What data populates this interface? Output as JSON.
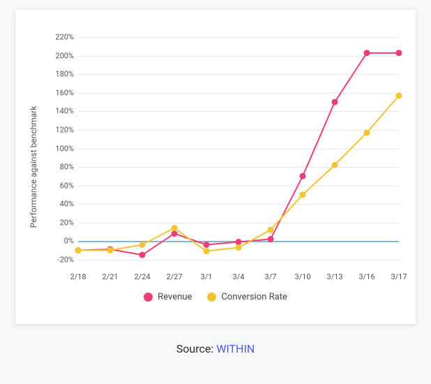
{
  "chart": {
    "type": "line",
    "background_color": "#ffffff",
    "grid_color": "#e7e8ea",
    "zero_line_color": "#80b9d6",
    "ylabel": "Performance against benchmark",
    "label_fontsize": 12,
    "tick_fontsize": 11,
    "tick_color": "#555555",
    "ylim": [
      -30,
      230
    ],
    "ytick_step": 20,
    "ytick_min": -20,
    "ytick_max": 220,
    "line_width": 2,
    "marker_style": "circle",
    "marker_radius": 4.5,
    "x_labels": [
      "2/18",
      "2/21",
      "2/24",
      "2/27",
      "3/1",
      "3/4",
      "3/7",
      "3/10",
      "3/13",
      "3/16",
      "3/17"
    ],
    "series": [
      {
        "name": "Revenue",
        "color": "#ec3e74",
        "values": [
          -10,
          -9,
          -15,
          8,
          -4,
          -1,
          2,
          70,
          150,
          203,
          203
        ]
      },
      {
        "name": "Conversion Rate",
        "color": "#f4c430",
        "values": [
          -10,
          -10,
          -4,
          14,
          -11,
          -7,
          12,
          50,
          82,
          117,
          157
        ]
      }
    ]
  },
  "legend": {
    "items": [
      {
        "label": "Revenue",
        "color": "#ec3e74"
      },
      {
        "label": "Conversion Rate",
        "color": "#f4c430"
      }
    ]
  },
  "source": {
    "prefix": "Source: ",
    "link_text": "WITHIN",
    "link_color": "#4a57e8"
  }
}
